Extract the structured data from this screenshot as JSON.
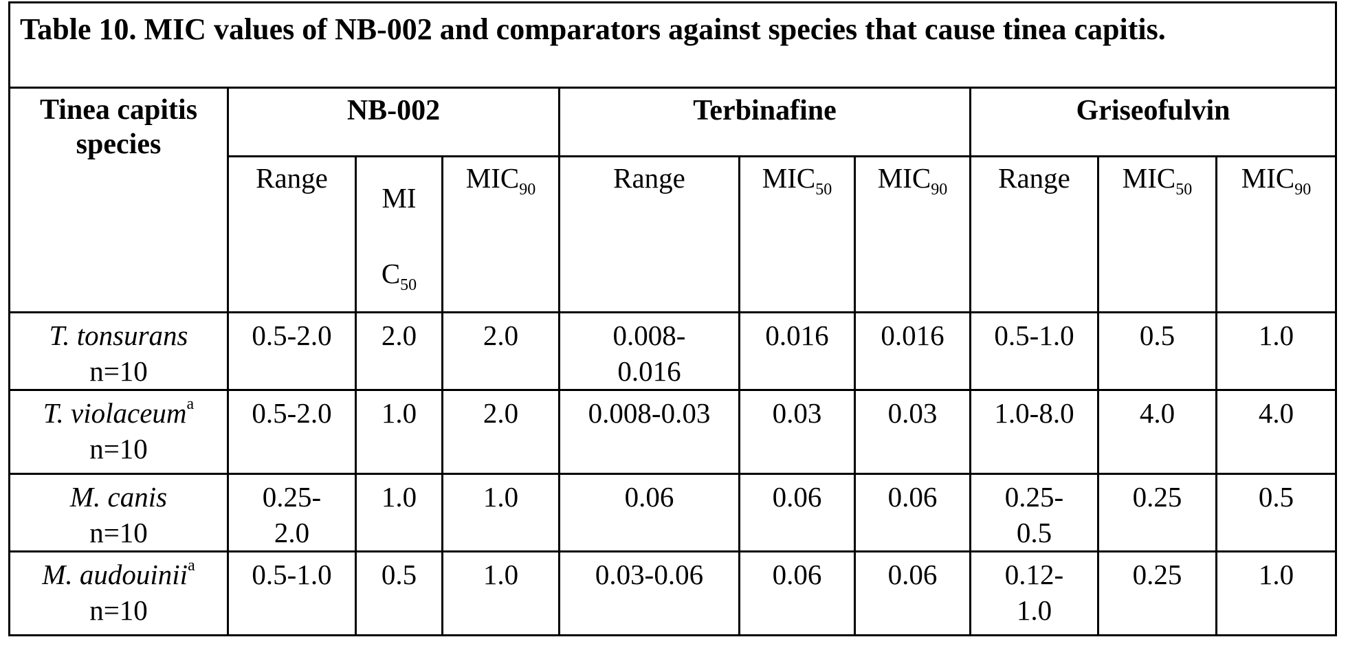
{
  "caption": "Table 10. MIC values of NB-002 and comparators against species that cause tinea capitis.",
  "header": {
    "species_col": "Tinea capitis species",
    "groups": [
      "NB-002",
      "Terbinafine",
      "Griseofulvin"
    ],
    "sub": {
      "range": "Range",
      "mic": "MIC",
      "mi": "MI",
      "c": "C",
      "s50": "50",
      "s90": "90"
    }
  },
  "rows": [
    {
      "species": "T. tonsurans",
      "sup": "",
      "n": "n=10",
      "values": [
        "0.5-2.0",
        "2.0",
        "2.0",
        "0.008-0.016",
        "0.016",
        "0.016",
        "0.5-1.0",
        "0.5",
        "1.0"
      ]
    },
    {
      "species": "T. violaceum",
      "sup": "a",
      "n": "n=10",
      "values": [
        "0.5-2.0",
        "1.0",
        "2.0",
        "0.008-0.03",
        "0.03",
        "0.03",
        "1.0-8.0",
        "4.0",
        "4.0"
      ]
    },
    {
      "species": "M. canis",
      "sup": "",
      "n": "n=10",
      "values": [
        "0.25-2.0",
        "1.0",
        "1.0",
        "0.06",
        "0.06",
        "0.06",
        "0.25-0.5",
        "0.25",
        "0.5"
      ]
    },
    {
      "species": "M. audouinii",
      "sup": "a",
      "n": "n=10",
      "values": [
        "0.5-1.0",
        "0.5",
        "1.0",
        "0.03-0.06",
        "0.06",
        "0.06",
        "0.12-1.0",
        "0.25",
        "1.0"
      ]
    }
  ]
}
